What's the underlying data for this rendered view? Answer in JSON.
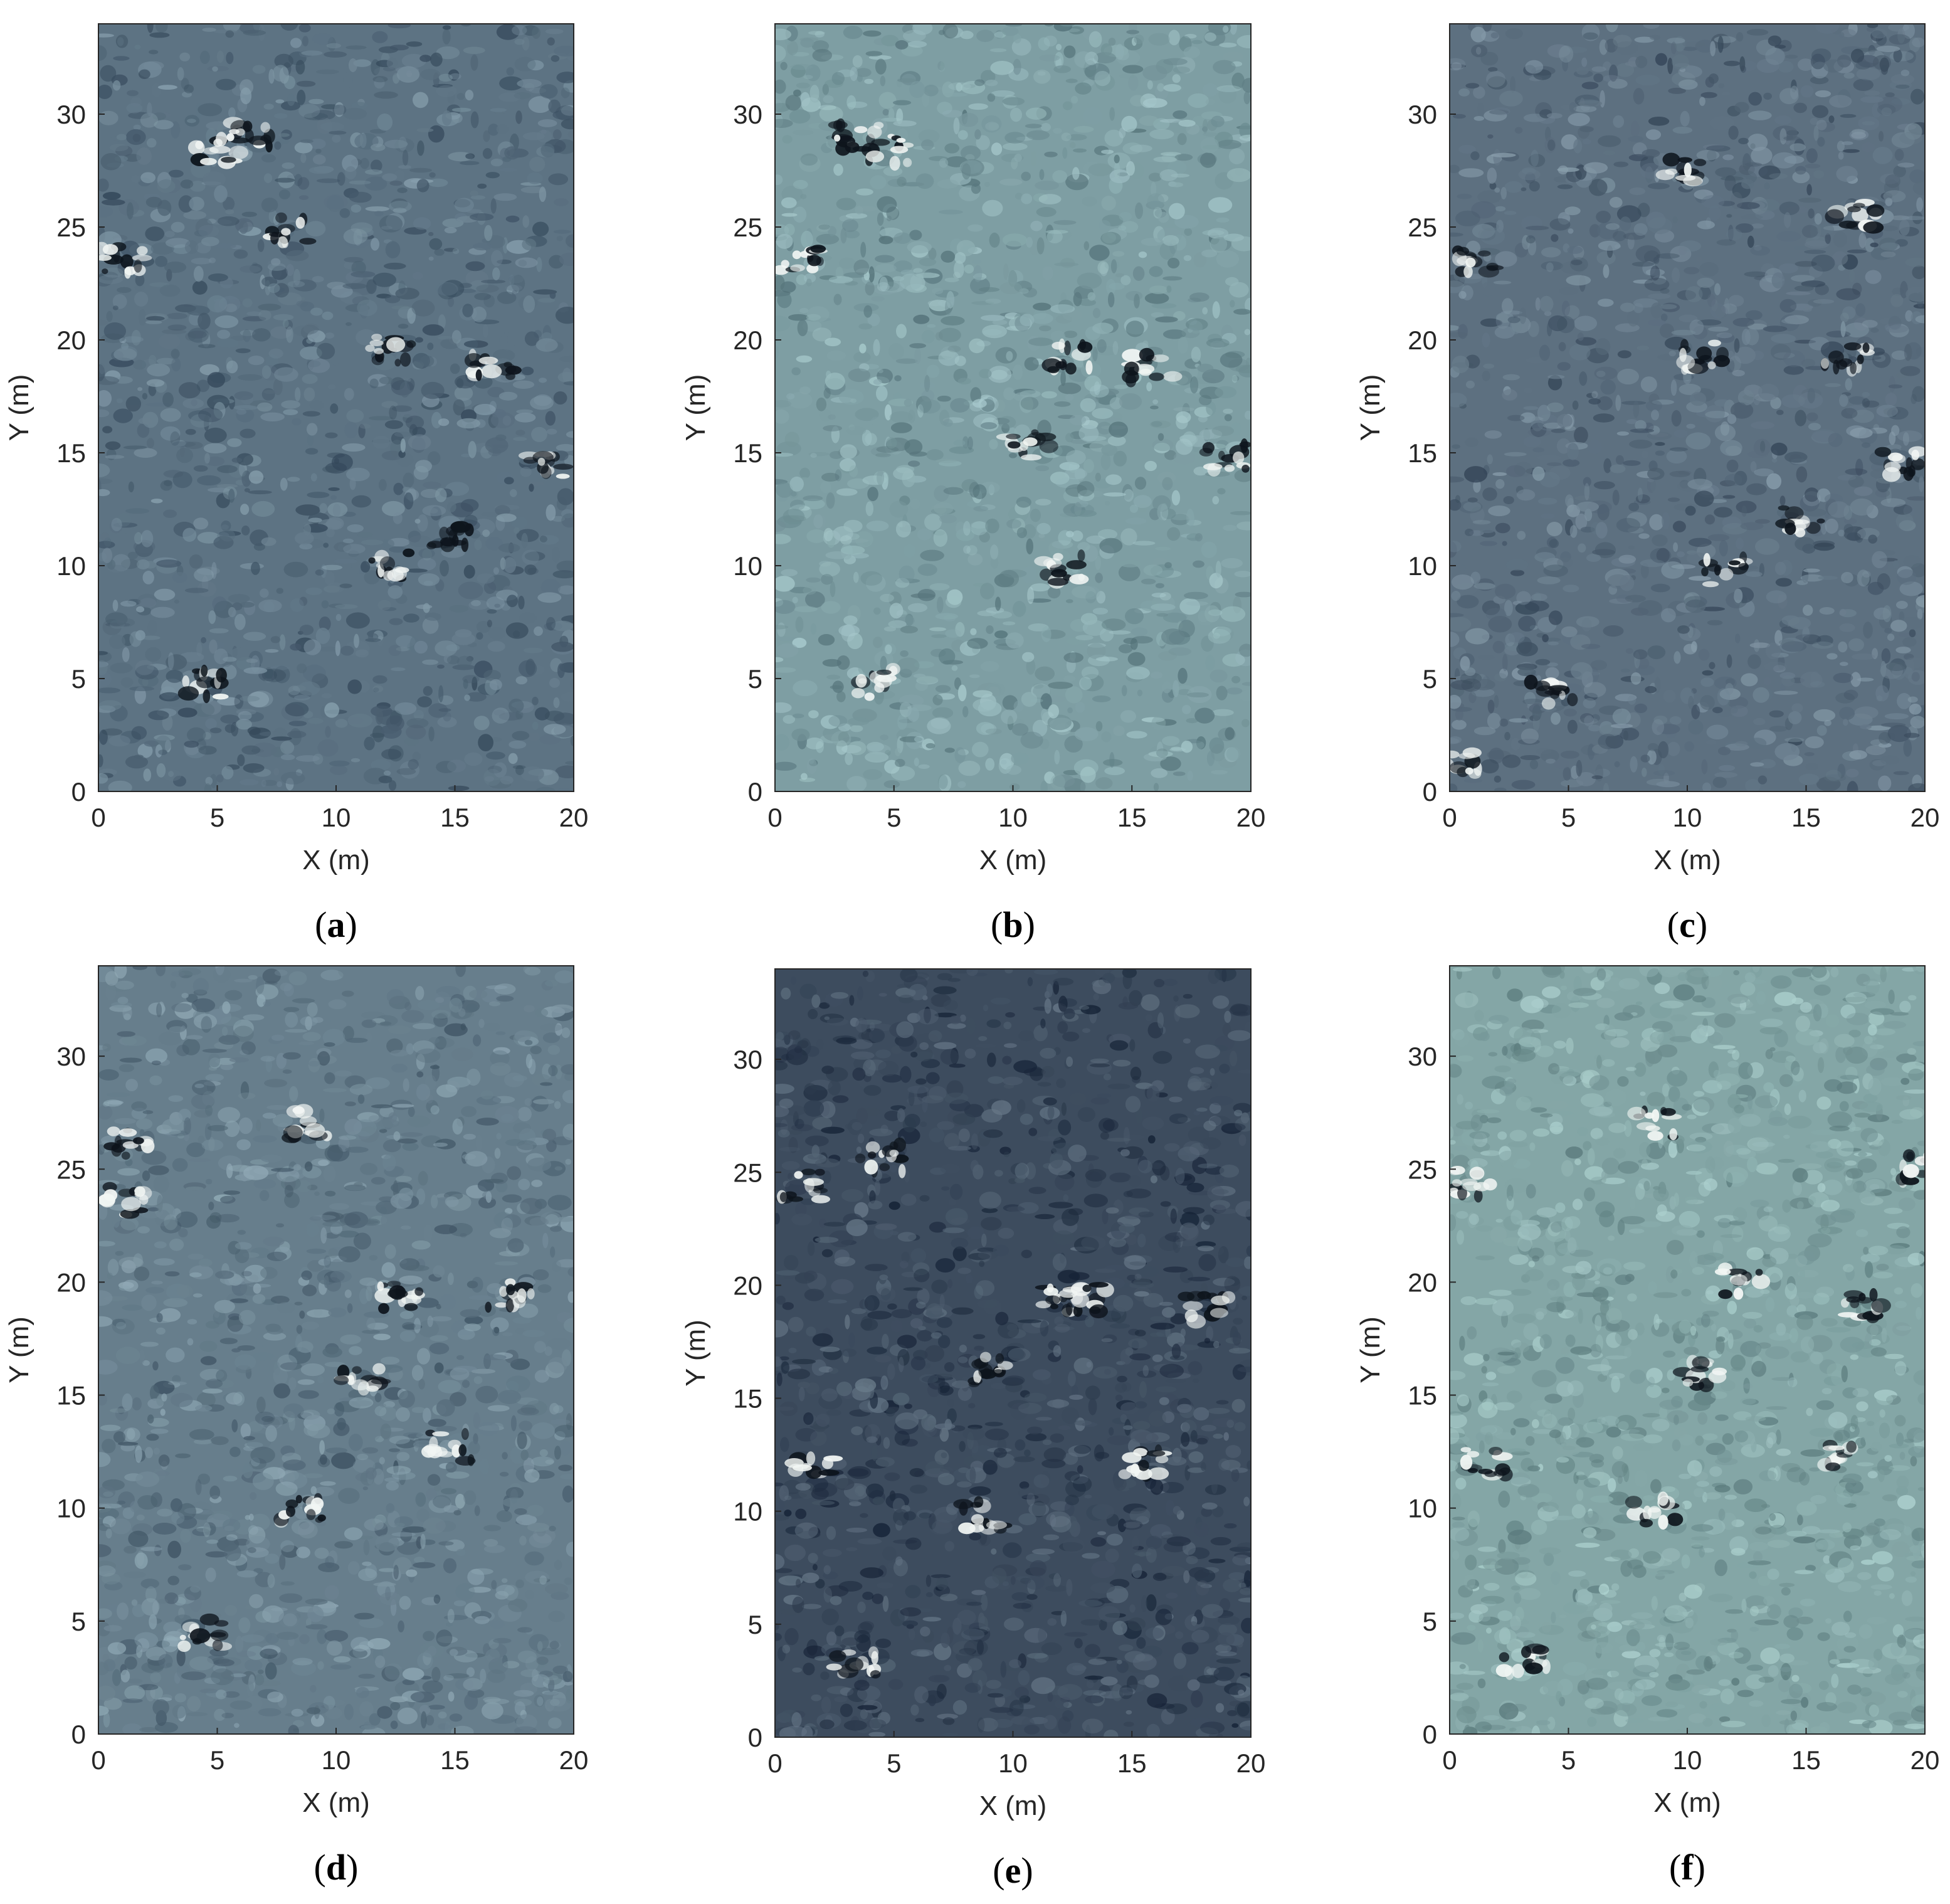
{
  "chart_data": [
    {
      "type": "heatmap",
      "panel_label": "a",
      "xlabel": "X (m)",
      "ylabel": "Y (m)",
      "xlim": [
        0,
        20
      ],
      "ylim": [
        0,
        34
      ],
      "xticks": [
        "0",
        "5",
        "10",
        "15",
        "20"
      ],
      "yticks": [
        "0",
        "5",
        "10",
        "15",
        "20",
        "25",
        "30"
      ],
      "base_color": "#5d7383",
      "anomalies": [
        [
          6.4,
          29.2
        ],
        [
          5.0,
          28.4
        ],
        [
          1.0,
          23.6
        ],
        [
          12.3,
          19.6
        ],
        [
          16.6,
          18.8
        ],
        [
          14.8,
          11.4
        ],
        [
          12.2,
          10.0
        ],
        [
          4.3,
          4.8
        ],
        [
          18.8,
          14.5
        ],
        [
          8.1,
          24.8
        ]
      ]
    },
    {
      "type": "heatmap",
      "panel_label": "b",
      "xlabel": "X (m)",
      "ylabel": "Y (m)",
      "xlim": [
        0,
        20
      ],
      "ylim": [
        0,
        34
      ],
      "xticks": [
        "0",
        "5",
        "10",
        "15",
        "20"
      ],
      "yticks": [
        "0",
        "5",
        "10",
        "15",
        "20",
        "25",
        "30"
      ],
      "base_color": "#7e9ea3",
      "anomalies": [
        [
          4.7,
          28.4
        ],
        [
          1.1,
          23.5
        ],
        [
          12.4,
          19.2
        ],
        [
          15.8,
          18.8
        ],
        [
          12.0,
          9.9
        ],
        [
          4.3,
          4.8
        ],
        [
          18.9,
          14.8
        ],
        [
          10.6,
          15.3
        ],
        [
          3.5,
          29.0
        ]
      ]
    },
    {
      "type": "heatmap",
      "panel_label": "c",
      "xlabel": "X (m)",
      "ylabel": "Y (m)",
      "xlim": [
        0,
        20
      ],
      "ylim": [
        0,
        34
      ],
      "xticks": [
        "0",
        "5",
        "10",
        "15",
        "20"
      ],
      "yticks": [
        "0",
        "5",
        "10",
        "15",
        "20",
        "25",
        "30"
      ],
      "base_color": "#5d7080",
      "anomalies": [
        [
          1.0,
          23.4
        ],
        [
          10.7,
          19.3
        ],
        [
          16.7,
          19.1
        ],
        [
          14.9,
          12.0
        ],
        [
          11.6,
          9.8
        ],
        [
          4.3,
          4.5
        ],
        [
          18.9,
          14.6
        ],
        [
          17.0,
          25.5
        ],
        [
          9.7,
          27.4
        ],
        [
          0.3,
          1.1
        ]
      ]
    },
    {
      "type": "heatmap",
      "panel_label": "d",
      "xlabel": "X (m)",
      "ylabel": "Y (m)",
      "xlim": [
        0,
        20
      ],
      "ylim": [
        0,
        34
      ],
      "xticks": [
        "0",
        "5",
        "10",
        "15",
        "20"
      ],
      "yticks": [
        "0",
        "5",
        "10",
        "15",
        "20",
        "25",
        "30"
      ],
      "base_color": "#677e8c",
      "anomalies": [
        [
          1.1,
          23.6
        ],
        [
          1.4,
          26.2
        ],
        [
          12.6,
          19.3
        ],
        [
          17.3,
          19.5
        ],
        [
          14.8,
          12.7
        ],
        [
          8.6,
          9.9
        ],
        [
          4.4,
          4.5
        ],
        [
          11.0,
          15.8
        ],
        [
          8.7,
          27.0
        ]
      ]
    },
    {
      "type": "heatmap",
      "panel_label": "e",
      "xlabel": "X (m)",
      "ylabel": "Y (m)",
      "xlim": [
        0,
        20
      ],
      "ylim": [
        0,
        34
      ],
      "xticks": [
        "0",
        "5",
        "10",
        "15",
        "20"
      ],
      "yticks": [
        "0",
        "5",
        "10",
        "15",
        "20",
        "25",
        "30"
      ],
      "base_color": "#3d4c5e",
      "anomalies": [
        [
          1.0,
          24.4
        ],
        [
          4.5,
          25.6
        ],
        [
          12.0,
          19.4
        ],
        [
          18.2,
          19.0
        ],
        [
          15.6,
          12.1
        ],
        [
          8.8,
          9.8
        ],
        [
          3.4,
          3.4
        ],
        [
          1.7,
          12.0
        ],
        [
          13.0,
          19.4
        ],
        [
          9.0,
          16.2
        ]
      ]
    },
    {
      "type": "heatmap",
      "panel_label": "f",
      "xlabel": "X (m)",
      "ylabel": "Y (m)",
      "xlim": [
        0,
        20
      ],
      "ylim": [
        0,
        34
      ],
      "xticks": [
        "0",
        "5",
        "10",
        "15",
        "20"
      ],
      "yticks": [
        "0",
        "5",
        "10",
        "15",
        "20",
        "25",
        "30"
      ],
      "base_color": "#84a6a6",
      "anomalies": [
        [
          1.0,
          24.4
        ],
        [
          12.3,
          20.0
        ],
        [
          17.5,
          18.9
        ],
        [
          16.0,
          12.4
        ],
        [
          8.6,
          9.8
        ],
        [
          3.2,
          3.3
        ],
        [
          1.5,
          12.0
        ],
        [
          8.7,
          27.0
        ],
        [
          10.7,
          15.9
        ],
        [
          19.8,
          25.0
        ]
      ]
    }
  ]
}
